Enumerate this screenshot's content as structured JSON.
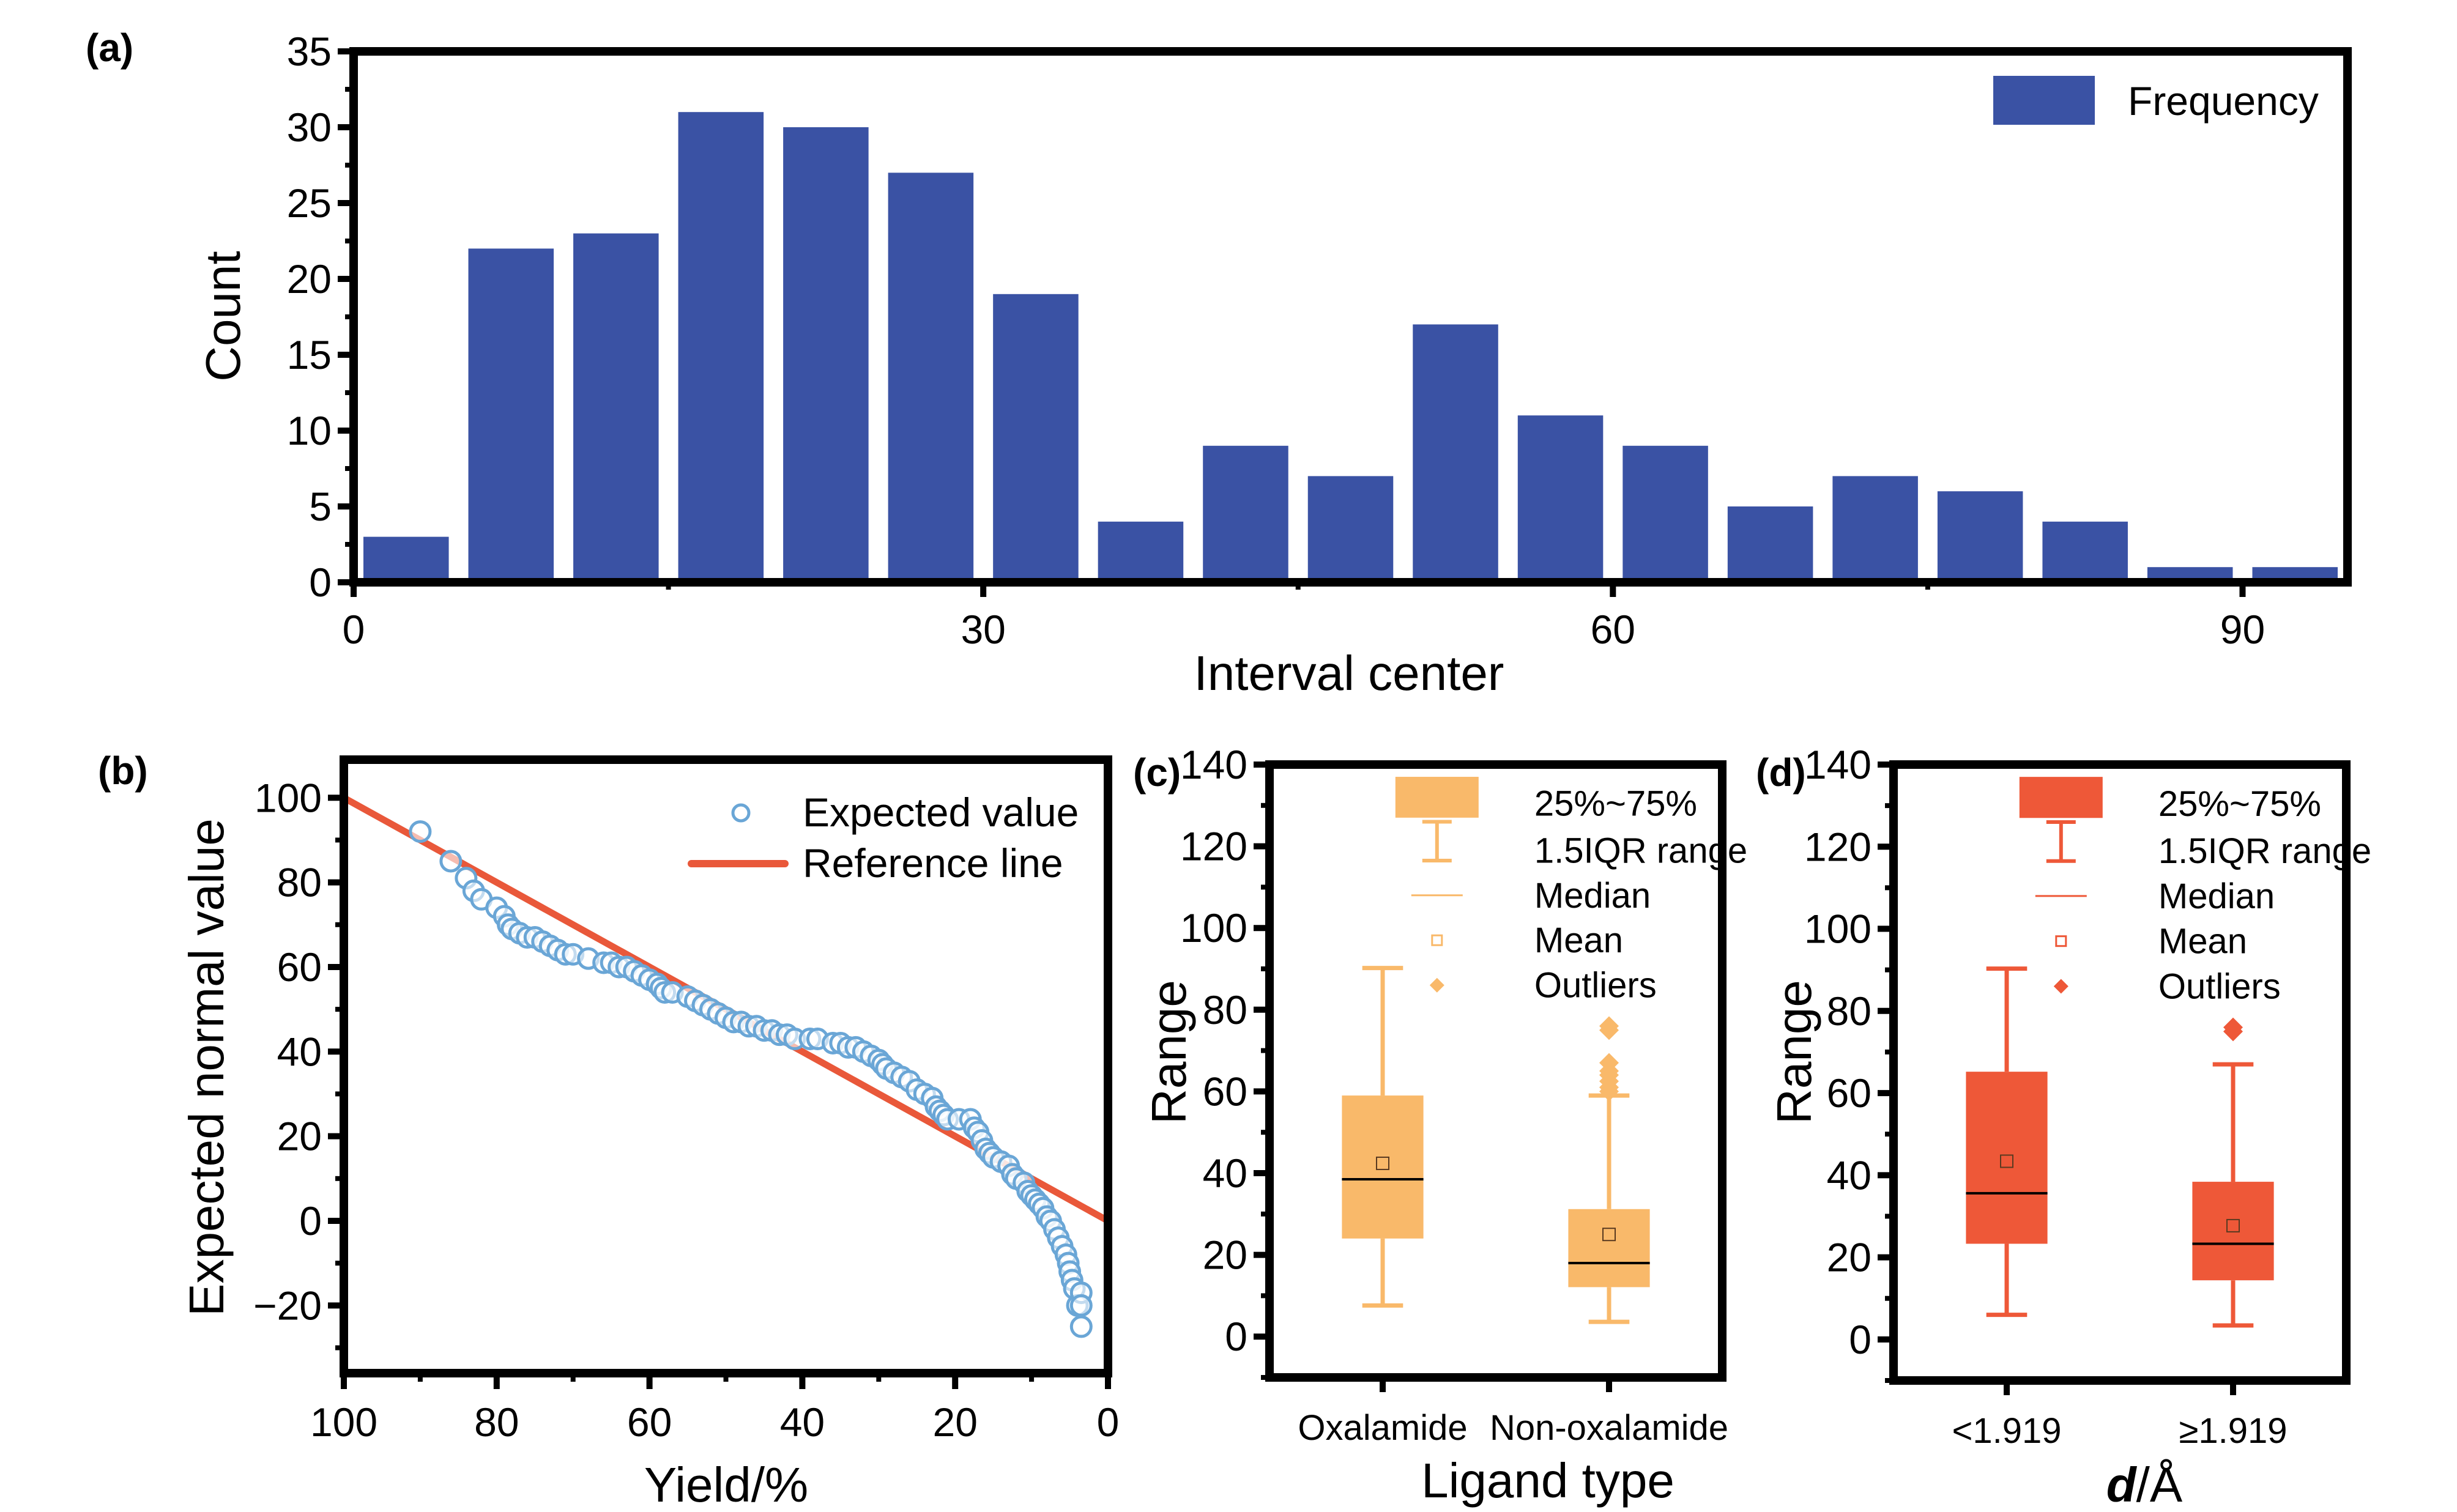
{
  "figure": {
    "colors": {
      "bar": "#3A52A4",
      "scatter": "#6AA6D6",
      "refline": "#E9583A",
      "box_c": "#F9B96A",
      "box_d": "#EE5838",
      "median": "#000000"
    }
  },
  "chart_data": [
    {
      "id": "a",
      "panel_label": "(a)",
      "type": "bar",
      "title": "",
      "xlabel": "Interval center",
      "ylabel": "Count",
      "xlim": [
        0,
        95
      ],
      "ylim": [
        0,
        35
      ],
      "xticks": [
        0,
        30,
        60,
        90
      ],
      "xtick_labels": [
        "0",
        "30",
        "60",
        "90"
      ],
      "yticks": [
        0,
        5,
        10,
        15,
        20,
        25,
        30,
        35
      ],
      "ytick_labels": [
        "0",
        "5",
        "10",
        "15",
        "20",
        "25",
        "30",
        "35"
      ],
      "bin_width": 5,
      "x": [
        2.5,
        7.5,
        12.5,
        17.5,
        22.5,
        27.5,
        32.5,
        37.5,
        42.5,
        47.5,
        52.5,
        57.5,
        62.5,
        67.5,
        72.5,
        77.5,
        82.5,
        87.5,
        92.5
      ],
      "values": [
        3,
        22,
        23,
        31,
        30,
        27,
        19,
        4,
        9,
        7,
        17,
        11,
        9,
        5,
        7,
        6,
        4,
        1,
        1
      ],
      "legend": [
        {
          "label": "Frequency",
          "marker": "bar"
        }
      ],
      "legend_position": "top-right",
      "grid": false
    },
    {
      "id": "b",
      "panel_label": "(b)",
      "type": "scatter",
      "xlabel": "Yield/%",
      "ylabel": "Expected normal value",
      "xlim": [
        100,
        0
      ],
      "ylim": [
        -36,
        109
      ],
      "xticks": [
        100,
        80,
        60,
        40,
        20,
        0
      ],
      "xtick_labels": [
        "100",
        "80",
        "60",
        "40",
        "20",
        "0"
      ],
      "yticks": [
        -20,
        0,
        20,
        40,
        60,
        80,
        100
      ],
      "ytick_labels": [
        "−20",
        "0",
        "20",
        "40",
        "60",
        "80",
        "100"
      ],
      "series": [
        {
          "name": "Expected value",
          "kind": "scatter",
          "points": [
            [
              90,
              92
            ],
            [
              86,
              85
            ],
            [
              84,
              81
            ],
            [
              83,
              78
            ],
            [
              82,
              76
            ],
            [
              80,
              74
            ],
            [
              79,
              72
            ],
            [
              78.5,
              70
            ],
            [
              78,
              69
            ],
            [
              77,
              68
            ],
            [
              76,
              67
            ],
            [
              75,
              67
            ],
            [
              74,
              66
            ],
            [
              73,
              65
            ],
            [
              72,
              64
            ],
            [
              71,
              63
            ],
            [
              70,
              63
            ],
            [
              68,
              62
            ],
            [
              66,
              61
            ],
            [
              65,
              61
            ],
            [
              64,
              60
            ],
            [
              63,
              60
            ],
            [
              62,
              59
            ],
            [
              61,
              58
            ],
            [
              60,
              57
            ],
            [
              59,
              56
            ],
            [
              58.5,
              55
            ],
            [
              58,
              54
            ],
            [
              57,
              54
            ],
            [
              55,
              53
            ],
            [
              54,
              52
            ],
            [
              53,
              51
            ],
            [
              52,
              50
            ],
            [
              51,
              49
            ],
            [
              50,
              48
            ],
            [
              49,
              47
            ],
            [
              48,
              47
            ],
            [
              47,
              46
            ],
            [
              46,
              46
            ],
            [
              45,
              45
            ],
            [
              44,
              45
            ],
            [
              43,
              44
            ],
            [
              42,
              44
            ],
            [
              41,
              43
            ],
            [
              39,
              43
            ],
            [
              38,
              43
            ],
            [
              36,
              42
            ],
            [
              35,
              42
            ],
            [
              34,
              41
            ],
            [
              33,
              41
            ],
            [
              32,
              40
            ],
            [
              31,
              39
            ],
            [
              30,
              38
            ],
            [
              29.5,
              37
            ],
            [
              29,
              36
            ],
            [
              28,
              35
            ],
            [
              27,
              34
            ],
            [
              26,
              33
            ],
            [
              25,
              31
            ],
            [
              24,
              30
            ],
            [
              23,
              29
            ],
            [
              22.5,
              27
            ],
            [
              22,
              26
            ],
            [
              21.5,
              25
            ],
            [
              21,
              24
            ],
            [
              19.5,
              24
            ],
            [
              18,
              24
            ],
            [
              17.5,
              22
            ],
            [
              17,
              21
            ],
            [
              16.5,
              19
            ],
            [
              16,
              17
            ],
            [
              15.5,
              16
            ],
            [
              15,
              15
            ],
            [
              14,
              14
            ],
            [
              13,
              13
            ],
            [
              12.5,
              11
            ],
            [
              12,
              10
            ],
            [
              11,
              9
            ],
            [
              10.5,
              7
            ],
            [
              10,
              6
            ],
            [
              9.5,
              5
            ],
            [
              9,
              4
            ],
            [
              8.5,
              3
            ],
            [
              8,
              1
            ],
            [
              7.5,
              0
            ],
            [
              7,
              -2
            ],
            [
              6.5,
              -4
            ],
            [
              6,
              -6
            ],
            [
              5.5,
              -8
            ],
            [
              5.2,
              -10
            ],
            [
              5,
              -12
            ],
            [
              4.7,
              -14
            ],
            [
              4.4,
              -16
            ],
            [
              4,
              -20
            ],
            [
              3.5,
              -17
            ],
            [
              3.5,
              -20
            ],
            [
              3.5,
              -25
            ]
          ]
        },
        {
          "name": "Reference line",
          "kind": "line",
          "points": [
            [
              100,
              100
            ],
            [
              0,
              0
            ]
          ]
        }
      ],
      "legend_position": "top-right",
      "grid": false
    },
    {
      "id": "c",
      "panel_label": "(c)",
      "type": "box",
      "xlabel": "Ligand type",
      "ylabel": "Range",
      "ylim": [
        -10,
        140
      ],
      "yticks": [
        0,
        20,
        40,
        60,
        80,
        100,
        120,
        140
      ],
      "ytick_labels": [
        "0",
        "20",
        "40",
        "60",
        "80",
        "100",
        "120",
        "140"
      ],
      "categories": [
        "Oxalamide",
        "Non-oxalamide"
      ],
      "boxes": [
        {
          "category": "Oxalamide",
          "whisker_low": 7.6,
          "q1": 24,
          "median": 38.5,
          "mean": 42.4,
          "q3": 59,
          "whisker_high": 90.2,
          "outliers": []
        },
        {
          "category": "Non-oxalamide",
          "whisker_low": 3.6,
          "q1": 12.1,
          "median": 18,
          "mean": 25,
          "q3": 31.2,
          "whisker_high": 59,
          "outliers": [
            60,
            61,
            62.5,
            64,
            65,
            67,
            75,
            76
          ]
        }
      ],
      "legend": [
        "25%~75%",
        "1.5IQR range",
        "Median",
        "Mean",
        "Outliers"
      ],
      "legend_position": "top-right",
      "grid": false
    },
    {
      "id": "d",
      "panel_label": "(d)",
      "type": "box",
      "xlabel_italic": "d",
      "xlabel_rest": "/Å",
      "ylabel": "Range",
      "ylim": [
        -10,
        140
      ],
      "yticks": [
        0,
        20,
        40,
        60,
        80,
        100,
        120,
        140
      ],
      "ytick_labels": [
        "0",
        "20",
        "40",
        "60",
        "80",
        "100",
        "120",
        "140"
      ],
      "categories": [
        "<1.919",
        "≥1.919"
      ],
      "boxes": [
        {
          "category": "<1.919",
          "whisker_low": 6,
          "q1": 23.3,
          "median": 35.6,
          "mean": 43.4,
          "q3": 65.2,
          "whisker_high": 90.3,
          "outliers": []
        },
        {
          "category": "≥1.919",
          "whisker_low": 3.4,
          "q1": 14.4,
          "median": 23.3,
          "mean": 27.7,
          "q3": 38.4,
          "whisker_high": 67,
          "outliers": [
            75,
            76
          ]
        }
      ],
      "legend": [
        "25%~75%",
        "1.5IQR range",
        "Median",
        "Mean",
        "Outliers"
      ],
      "legend_position": "top-right",
      "grid": false
    }
  ]
}
